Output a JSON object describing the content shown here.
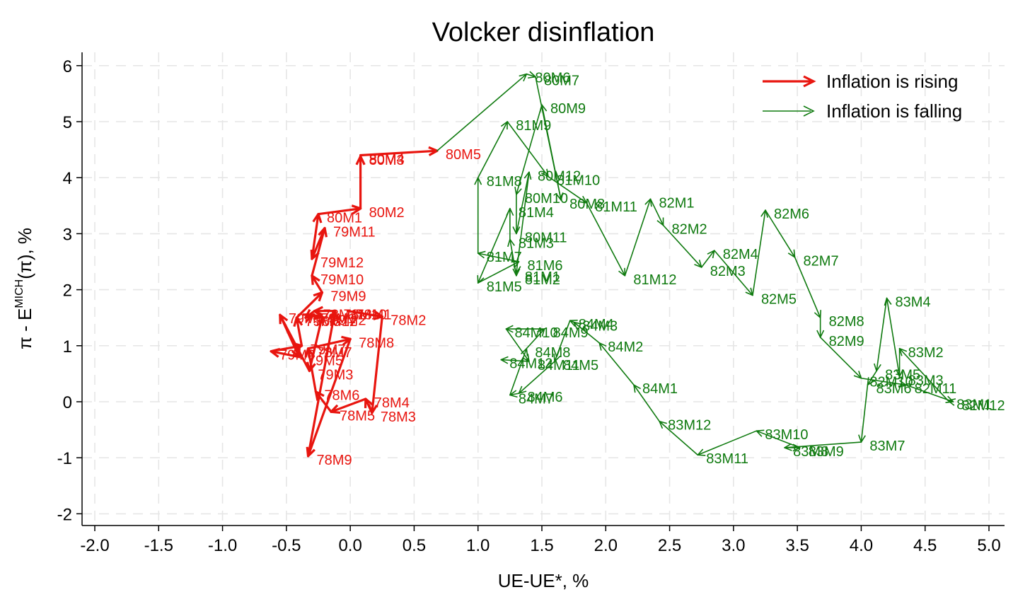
{
  "chart_data": {
    "type": "line",
    "title": "Volcker disinflation",
    "xlabel": "UE-UE*, %",
    "ylabel": "π - E",
    "ylabel_sup": "MICH",
    "ylabel_tail": "(π), %",
    "xlim": [
      -2.1,
      5.1
    ],
    "ylim": [
      -2.2,
      6.2
    ],
    "xticks": [
      "-2.0",
      "-1.5",
      "-1.0",
      "-0.5",
      "0.0",
      "0.5",
      "1.0",
      "1.5",
      "2.0",
      "2.5",
      "3.0",
      "3.5",
      "4.0",
      "4.5",
      "5.0"
    ],
    "xtick_values": [
      -2.0,
      -1.5,
      -1.0,
      -0.5,
      0.0,
      0.5,
      1.0,
      1.5,
      2.0,
      2.5,
      3.0,
      3.5,
      4.0,
      4.5,
      5.0
    ],
    "yticks": [
      "-2",
      "-1",
      "0",
      "1",
      "2",
      "3",
      "4",
      "5",
      "6"
    ],
    "ytick_values": [
      -2,
      -1,
      0,
      1,
      2,
      3,
      4,
      5,
      6
    ],
    "grid": true,
    "legend_position": "top-right",
    "colors": {
      "rising": "#e8150f",
      "falling": "#0f7a0f"
    },
    "legend": [
      {
        "name": "Inflation is rising",
        "key": "rising"
      },
      {
        "name": "Inflation is falling",
        "key": "falling"
      }
    ],
    "series": [
      {
        "name": "Inflation is rising",
        "key": "rising",
        "points": [
          {
            "label": "78M1",
            "x": -0.02,
            "y": 1.62
          },
          {
            "label": "78M2",
            "x": 0.25,
            "y": 1.52
          },
          {
            "label": "78M3",
            "x": 0.17,
            "y": -0.2
          },
          {
            "label": "78M4",
            "x": 0.12,
            "y": 0.05
          },
          {
            "label": "78M5",
            "x": -0.15,
            "y": -0.18
          },
          {
            "label": "78M6",
            "x": -0.27,
            "y": 0.18
          },
          {
            "label": "78M7",
            "x": -0.33,
            "y": 0.95
          },
          {
            "label": "78M8",
            "x": 0.0,
            "y": 1.12
          },
          {
            "label": "78M9",
            "x": -0.33,
            "y": -0.97
          },
          {
            "label": "78M10",
            "x": -0.12,
            "y": 1.62
          },
          {
            "label": "78M11",
            "x": -0.28,
            "y": 1.62
          },
          {
            "label": "78M12",
            "x": -0.35,
            "y": 1.5
          },
          {
            "label": "79M1",
            "x": -0.3,
            "y": 1.55
          },
          {
            "label": "79M2",
            "x": -0.22,
            "y": 1.52
          },
          {
            "label": "79M3",
            "x": -0.32,
            "y": 0.55
          },
          {
            "label": "79M4",
            "x": -0.55,
            "y": 1.55
          },
          {
            "label": "79M5",
            "x": -0.4,
            "y": 0.8
          },
          {
            "label": "79M6",
            "x": -0.62,
            "y": 0.9
          },
          {
            "label": "79M7",
            "x": -0.38,
            "y": 1.0
          },
          {
            "label": "79M8",
            "x": -0.42,
            "y": 1.5
          },
          {
            "label": "79M9",
            "x": -0.22,
            "y": 1.95
          },
          {
            "label": "79M10",
            "x": -0.3,
            "y": 2.25
          },
          {
            "label": "79M11",
            "x": -0.2,
            "y": 3.1
          },
          {
            "label": "79M12",
            "x": -0.3,
            "y": 2.55
          },
          {
            "label": "80M1",
            "x": -0.25,
            "y": 3.35
          },
          {
            "label": "80M2",
            "x": 0.08,
            "y": 3.45
          },
          {
            "label": "80M3",
            "x": 0.08,
            "y": 4.38
          },
          {
            "label": "80M4",
            "x": 0.08,
            "y": 4.4
          },
          {
            "label": "80M5",
            "x": 0.68,
            "y": 4.48
          }
        ]
      },
      {
        "name": "Inflation is falling",
        "key": "falling",
        "points": [
          {
            "label": "80M5",
            "x": 0.68,
            "y": 4.48
          },
          {
            "label": "80M6",
            "x": 1.38,
            "y": 5.85
          },
          {
            "label": "80M7",
            "x": 1.45,
            "y": 5.8
          },
          {
            "label": "80M8",
            "x": 1.65,
            "y": 3.6
          },
          {
            "label": "80M9",
            "x": 1.5,
            "y": 5.3
          },
          {
            "label": "80M10",
            "x": 1.3,
            "y": 3.7
          },
          {
            "label": "80M11",
            "x": 1.3,
            "y": 3.0
          },
          {
            "label": "80M12",
            "x": 1.4,
            "y": 4.1
          },
          {
            "label": "81M1",
            "x": 1.3,
            "y": 2.3
          },
          {
            "label": "81M2",
            "x": 1.3,
            "y": 2.25
          },
          {
            "label": "81M3",
            "x": 1.25,
            "y": 2.9
          },
          {
            "label": "81M4",
            "x": 1.25,
            "y": 3.45
          },
          {
            "label": "81M5",
            "x": 1.0,
            "y": 2.12
          },
          {
            "label": "81M6",
            "x": 1.32,
            "y": 2.5
          },
          {
            "label": "81M7",
            "x": 1.0,
            "y": 2.65
          },
          {
            "label": "81M8",
            "x": 1.0,
            "y": 4.0
          },
          {
            "label": "81M9",
            "x": 1.23,
            "y": 5.0
          },
          {
            "label": "81M10",
            "x": 1.55,
            "y": 4.02
          },
          {
            "label": "81M11",
            "x": 1.85,
            "y": 3.55
          },
          {
            "label": "81M12",
            "x": 2.15,
            "y": 2.25
          },
          {
            "label": "82M1",
            "x": 2.35,
            "y": 3.62
          },
          {
            "label": "82M2",
            "x": 2.45,
            "y": 3.15
          },
          {
            "label": "82M3",
            "x": 2.75,
            "y": 2.4
          },
          {
            "label": "82M4",
            "x": 2.85,
            "y": 2.7
          },
          {
            "label": "82M5",
            "x": 3.15,
            "y": 1.9
          },
          {
            "label": "82M6",
            "x": 3.25,
            "y": 3.42
          },
          {
            "label": "82M7",
            "x": 3.48,
            "y": 2.58
          },
          {
            "label": "82M8",
            "x": 3.68,
            "y": 1.5
          },
          {
            "label": "82M9",
            "x": 3.68,
            "y": 1.15
          },
          {
            "label": "82M10",
            "x": 4.0,
            "y": 0.42
          },
          {
            "label": "82M11",
            "x": 4.35,
            "y": 0.3
          },
          {
            "label": "82M12",
            "x": 4.72,
            "y": 0.0
          },
          {
            "label": "83M1",
            "x": 4.68,
            "y": 0.02
          },
          {
            "label": "83M2",
            "x": 4.3,
            "y": 0.95
          },
          {
            "label": "83M3",
            "x": 4.3,
            "y": 0.45
          },
          {
            "label": "83M4",
            "x": 4.2,
            "y": 1.85
          },
          {
            "label": "83M5",
            "x": 4.12,
            "y": 0.55
          },
          {
            "label": "83M6",
            "x": 4.05,
            "y": 0.3
          },
          {
            "label": "83M7",
            "x": 4.0,
            "y": -0.72
          },
          {
            "label": "83M8",
            "x": 3.4,
            "y": -0.82
          },
          {
            "label": "83M9",
            "x": 3.52,
            "y": -0.82
          },
          {
            "label": "83M10",
            "x": 3.18,
            "y": -0.52
          },
          {
            "label": "83M11",
            "x": 2.72,
            "y": -0.95
          },
          {
            "label": "83M12",
            "x": 2.42,
            "y": -0.35
          },
          {
            "label": "84M1",
            "x": 2.22,
            "y": 0.3
          },
          {
            "label": "84M2",
            "x": 1.95,
            "y": 1.05
          },
          {
            "label": "84M3",
            "x": 1.75,
            "y": 1.42
          },
          {
            "label": "84M4",
            "x": 1.72,
            "y": 1.45
          },
          {
            "label": "84M5",
            "x": 1.6,
            "y": 0.72
          },
          {
            "label": "84M6",
            "x": 1.32,
            "y": 0.15
          },
          {
            "label": "84M7",
            "x": 1.25,
            "y": 0.12
          },
          {
            "label": "84M8",
            "x": 1.38,
            "y": 0.95
          },
          {
            "label": "84M9",
            "x": 1.52,
            "y": 1.3
          },
          {
            "label": "84M10",
            "x": 1.22,
            "y": 1.3
          },
          {
            "label": "84M11",
            "x": 1.4,
            "y": 0.72
          },
          {
            "label": "84M12",
            "x": 1.18,
            "y": 0.75
          }
        ]
      }
    ]
  }
}
